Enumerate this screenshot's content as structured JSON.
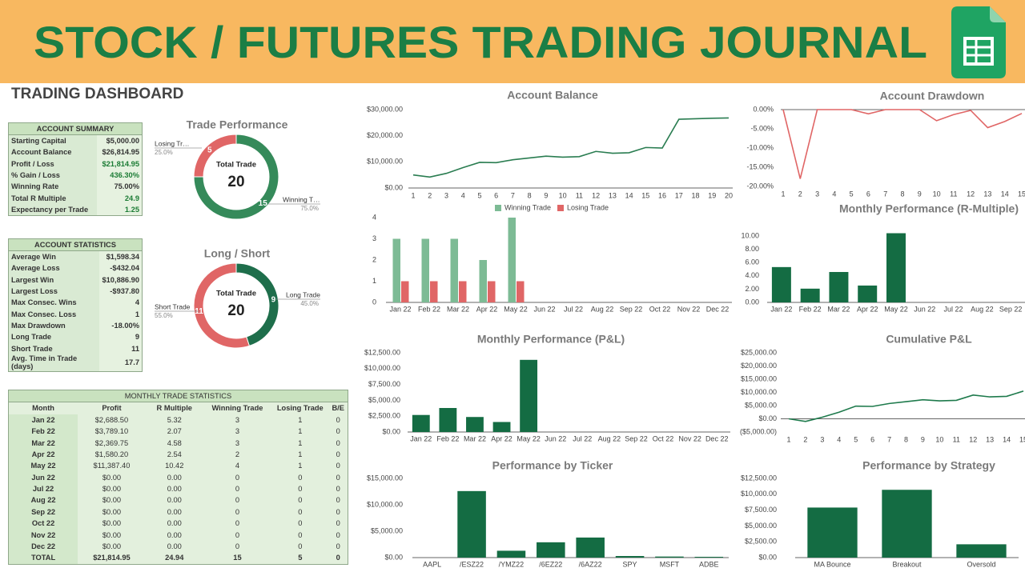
{
  "header": {
    "title": "STOCK / FUTURES TRADING JOURNAL",
    "subtitle": "TRADING DASHBOARD"
  },
  "account_summary": {
    "title": "ACCOUNT SUMMARY",
    "rows": [
      [
        "Starting Capital",
        "$5,000.00"
      ],
      [
        "Account Balance",
        "$26,814.95"
      ],
      [
        "Profit / Loss",
        "$21,814.95"
      ],
      [
        "% Gain / Loss",
        "436.30%"
      ],
      [
        "Winning Rate",
        "75.00%"
      ],
      [
        "Total R Multiple",
        "24.9"
      ],
      [
        "Expectancy per Trade",
        "1.25"
      ]
    ]
  },
  "account_statistics": {
    "title": "ACCOUNT STATISTICS",
    "rows": [
      [
        "Average Win",
        "$1,598.34"
      ],
      [
        "Average Loss",
        "-$432.04"
      ],
      [
        "Largest Win",
        "$10,886.90"
      ],
      [
        "Largest Loss",
        "-$937.80"
      ],
      [
        "Max Consec. Wins",
        "4"
      ],
      [
        "Max Consec. Loss",
        "1"
      ],
      [
        "Max Drawdown",
        "-18.00%"
      ],
      [
        "Long Trade",
        "9"
      ],
      [
        "Short Trade",
        "11"
      ],
      [
        "Avg. Time in Trade (days)",
        "17.7"
      ]
    ]
  },
  "monthly_table": {
    "title": "MONTHLY TRADE STATISTICS",
    "columns": [
      "Month",
      "Profit",
      "R Multiple",
      "Winning Trade",
      "Losing Trade",
      "B/E"
    ],
    "rows": [
      [
        "Jan 22",
        "$2,688.50",
        "5.32",
        "3",
        "1",
        "0"
      ],
      [
        "Feb 22",
        "$3,789.10",
        "2.07",
        "3",
        "1",
        "0"
      ],
      [
        "Mar 22",
        "$2,369.75",
        "4.58",
        "3",
        "1",
        "0"
      ],
      [
        "Apr 22",
        "$1,580.20",
        "2.54",
        "2",
        "1",
        "0"
      ],
      [
        "May 22",
        "$11,387.40",
        "10.42",
        "4",
        "1",
        "0"
      ],
      [
        "Jun 22",
        "$0.00",
        "0.00",
        "0",
        "0",
        "0"
      ],
      [
        "Jul 22",
        "$0.00",
        "0.00",
        "0",
        "0",
        "0"
      ],
      [
        "Aug 22",
        "$0.00",
        "0.00",
        "0",
        "0",
        "0"
      ],
      [
        "Sep 22",
        "$0.00",
        "0.00",
        "0",
        "0",
        "0"
      ],
      [
        "Oct 22",
        "$0.00",
        "0.00",
        "0",
        "0",
        "0"
      ],
      [
        "Nov 22",
        "$0.00",
        "0.00",
        "0",
        "0",
        "0"
      ],
      [
        "Dec 22",
        "$0.00",
        "0.00",
        "0",
        "0",
        "0"
      ],
      [
        "TOTAL",
        "$21,814.95",
        "24.94",
        "15",
        "5",
        "0"
      ]
    ]
  },
  "chart_data": [
    {
      "type": "donut",
      "title": "Trade Performance",
      "total_label": "Total Trade",
      "total": 20,
      "categories": [
        "Winning T…",
        "Losing Tr…"
      ],
      "values": [
        15,
        5
      ],
      "shares": [
        {
          "value": 75,
          "label": "75.0%"
        },
        {
          "value": 25,
          "label": "25.0%"
        }
      ],
      "colors": [
        "#358a5a",
        "#e06666"
      ]
    },
    {
      "type": "donut",
      "title": "Long / Short",
      "total_label": "Total Trade",
      "total": 20,
      "categories": [
        "Long Trade",
        "Short Trade"
      ],
      "values": [
        9,
        11
      ],
      "shares": [
        {
          "value": 45,
          "label": "45.0%"
        },
        {
          "value": 55,
          "label": "55.0%"
        }
      ],
      "colors": [
        "#1e6e4b",
        "#e06666"
      ]
    },
    {
      "type": "line",
      "title": "Account Balance",
      "color": "#2a7d51",
      "grid": false,
      "x": [
        1,
        2,
        3,
        4,
        5,
        6,
        7,
        8,
        9,
        10,
        11,
        12,
        13,
        14,
        15,
        16,
        17,
        18,
        19,
        20
      ],
      "values": [
        5000,
        4200,
        5600,
        7800,
        9800,
        9700,
        10800,
        11500,
        12200,
        11800,
        12000,
        14000,
        13300,
        13500,
        15500,
        15300,
        26300,
        26500,
        26700,
        26815
      ],
      "xlim": [
        1,
        20
      ],
      "xticks": [
        1,
        2,
        3,
        4,
        5,
        6,
        7,
        8,
        9,
        10,
        11,
        12,
        13,
        14,
        15,
        16,
        17,
        18,
        19,
        20
      ],
      "ylim": [
        0,
        30000
      ],
      "yticks": [
        {
          "value": 0,
          "label": "$0.00"
        },
        {
          "value": 10000,
          "label": "$10,000.00"
        },
        {
          "value": 20000,
          "label": "$20,000.00"
        },
        {
          "value": 30000,
          "label": "$30,000.00"
        }
      ]
    },
    {
      "type": "line",
      "title": "Account Drawdown",
      "color": "#e06666",
      "grid": false,
      "x": [
        1,
        2,
        3,
        4,
        5,
        6,
        7,
        8,
        9,
        10,
        11,
        12,
        13,
        14,
        15
      ],
      "values": [
        0,
        -18,
        0,
        0,
        0,
        -1.1,
        0,
        0,
        0,
        -2.9,
        -1.3,
        -0.2,
        -4.7,
        -3.1,
        -1
      ],
      "xlim": [
        1,
        15
      ],
      "xticks": [
        1,
        2,
        3,
        4,
        5,
        6,
        7,
        8,
        9,
        10,
        11,
        12,
        13,
        14,
        15
      ],
      "ylim": [
        -20,
        0
      ],
      "yticks": [
        {
          "value": 0,
          "label": "0.00%"
        },
        {
          "value": -5,
          "label": "-5.00%"
        },
        {
          "value": -10,
          "label": "-10.00%"
        },
        {
          "value": -15,
          "label": "-15.00%"
        },
        {
          "value": -20,
          "label": "-20.00%"
        }
      ]
    },
    {
      "type": "grouped_bar",
      "legend": "top",
      "grid": false,
      "categories": [
        "Jan 22",
        "Feb 22",
        "Mar 22",
        "Apr 22",
        "May 22",
        "Jun 22",
        "Jul 22",
        "Aug 22",
        "Sep 22",
        "Oct 22",
        "Nov 22",
        "Dec 22"
      ],
      "series": [
        {
          "name": "Winning Trade",
          "color": "#7dbb95",
          "values": [
            3,
            3,
            3,
            2,
            4,
            0,
            0,
            0,
            0,
            0,
            0,
            0
          ]
        },
        {
          "name": "Losing Trade",
          "color": "#e06666",
          "values": [
            1,
            1,
            1,
            1,
            1,
            0,
            0,
            0,
            0,
            0,
            0,
            0
          ]
        }
      ],
      "ylim": [
        0,
        4
      ],
      "yticks": [
        0,
        1,
        2,
        3,
        4
      ]
    },
    {
      "type": "bar",
      "title": "Monthly Performance (R-Multiple)",
      "color": "#146c43",
      "grid": false,
      "categories": [
        "Jan 22",
        "Feb 22",
        "Mar 22",
        "Apr 22",
        "May 22",
        "Jun 22",
        "Jul 22",
        "Aug 22",
        "Sep 22"
      ],
      "values": [
        5.32,
        2.07,
        4.58,
        2.54,
        10.42,
        0,
        0,
        0,
        0
      ],
      "ylim": [
        0,
        12
      ],
      "yticks": [
        {
          "value": 0,
          "label": "0.00"
        },
        {
          "value": 2,
          "label": "2.00"
        },
        {
          "value": 4,
          "label": "4.00"
        },
        {
          "value": 6,
          "label": "6.00"
        },
        {
          "value": 8,
          "label": "8.00"
        },
        {
          "value": 10,
          "label": "10.00"
        }
      ]
    },
    {
      "type": "bar",
      "title": "Monthly Performance (P&L)",
      "color": "#146c43",
      "grid": false,
      "categories": [
        "Jan 22",
        "Feb 22",
        "Mar 22",
        "Apr 22",
        "May 22",
        "Jun 22",
        "Jul 22",
        "Aug 22",
        "Sep 22",
        "Oct 22",
        "Nov 22",
        "Dec 22"
      ],
      "values": [
        2688.5,
        3789.1,
        2369.75,
        1580.2,
        11387.4,
        0,
        0,
        0,
        0,
        0,
        0,
        0
      ],
      "ylim": [
        0,
        12500
      ],
      "yticks": [
        {
          "value": 0,
          "label": "$0.00"
        },
        {
          "value": 2500,
          "label": "$2,500.00"
        },
        {
          "value": 5000,
          "label": "$5,000.00"
        },
        {
          "value": 7500,
          "label": "$7,500.00"
        },
        {
          "value": 10000,
          "label": "$10,000.00"
        },
        {
          "value": 12500,
          "label": "$12,500.00"
        }
      ]
    },
    {
      "type": "line",
      "title": "Cumulative P&L",
      "color": "#1e7a4c",
      "grid": false,
      "x": [
        1,
        2,
        3,
        4,
        5,
        6,
        7,
        8,
        9,
        10,
        11,
        12,
        13,
        14,
        15
      ],
      "values": [
        0,
        -1000,
        600,
        2500,
        4800,
        4700,
        5800,
        6500,
        7200,
        6800,
        7000,
        9000,
        8300,
        8500,
        10500
      ],
      "xlim": [
        1,
        15
      ],
      "xticks": [
        1,
        2,
        3,
        4,
        5,
        6,
        7,
        8,
        9,
        10,
        11,
        12,
        13,
        14,
        15
      ],
      "ylim": [
        -5000,
        25000
      ],
      "yticks": [
        {
          "value": -5000,
          "label": "($5,000.00)"
        },
        {
          "value": 0,
          "label": "$0.00"
        },
        {
          "value": 5000,
          "label": "$5,000.00"
        },
        {
          "value": 10000,
          "label": "$10,000.00"
        },
        {
          "value": 15000,
          "label": "$15,000.00"
        },
        {
          "value": 20000,
          "label": "$20,000.00"
        },
        {
          "value": 25000,
          "label": "$25,000.00"
        }
      ]
    },
    {
      "type": "bar",
      "title": "Performance by Ticker",
      "color": "#146c43",
      "grid": false,
      "categories": [
        "AAPL",
        "/ESZ22",
        "/YMZ22",
        "/6EZ22",
        "/6AZ22",
        "SPY",
        "MSFT",
        "ADBE"
      ],
      "values": [
        0,
        12600,
        1300,
        2900,
        3800,
        300,
        200,
        150
      ],
      "ylim": [
        0,
        15000
      ],
      "yticks": [
        {
          "value": 0,
          "label": "$0.00"
        },
        {
          "value": 5000,
          "label": "$5,000.00"
        },
        {
          "value": 10000,
          "label": "$10,000.00"
        },
        {
          "value": 15000,
          "label": "$15,000.00"
        }
      ]
    },
    {
      "type": "bar",
      "title": "Performance by Strategy",
      "color": "#146c43",
      "grid": false,
      "categories": [
        "MA Bounce",
        "Breakout",
        "Oversold"
      ],
      "values": [
        7900,
        10700,
        2100
      ],
      "ylim": [
        0,
        12500
      ],
      "yticks": [
        {
          "value": 0,
          "label": "$0.00"
        },
        {
          "value": 2500,
          "label": "$2,500.00"
        },
        {
          "value": 5000,
          "label": "$5,000.00"
        },
        {
          "value": 7500,
          "label": "$7,500.00"
        },
        {
          "value": 10000,
          "label": "$10,000.00"
        },
        {
          "value": 12500,
          "label": "$12,500.00"
        }
      ]
    }
  ]
}
